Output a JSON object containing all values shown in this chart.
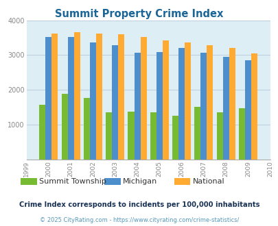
{
  "title": "Summit Property Crime Index",
  "title_color": "#1a6699",
  "years": [
    2000,
    2001,
    2002,
    2003,
    2004,
    2005,
    2006,
    2007,
    2008,
    2009
  ],
  "summit": [
    1570,
    1890,
    1760,
    1360,
    1370,
    1350,
    1260,
    1510,
    1350,
    1480
  ],
  "michigan": [
    3530,
    3520,
    3360,
    3290,
    3070,
    3090,
    3210,
    3070,
    2950,
    2850
  ],
  "national": [
    3620,
    3650,
    3620,
    3600,
    3520,
    3430,
    3360,
    3290,
    3210,
    3050
  ],
  "summit_color": "#77bb33",
  "michigan_color": "#4d8fcc",
  "national_color": "#ffaa33",
  "bg_color": "#ddeef4",
  "xlim": [
    1999,
    2010
  ],
  "ylim": [
    0,
    4000
  ],
  "yticks": [
    0,
    1000,
    2000,
    3000,
    4000
  ],
  "xticks": [
    1999,
    2000,
    2001,
    2002,
    2003,
    2004,
    2005,
    2006,
    2007,
    2008,
    2009,
    2010
  ],
  "legend_labels": [
    "Summit Township",
    "Michigan",
    "National"
  ],
  "footnote1": "Crime Index corresponds to incidents per 100,000 inhabitants",
  "footnote2": "© 2025 CityRating.com - https://www.cityrating.com/crime-statistics/",
  "footnote1_color": "#1a3355",
  "footnote2_color": "#5599bb",
  "bar_width": 0.28
}
